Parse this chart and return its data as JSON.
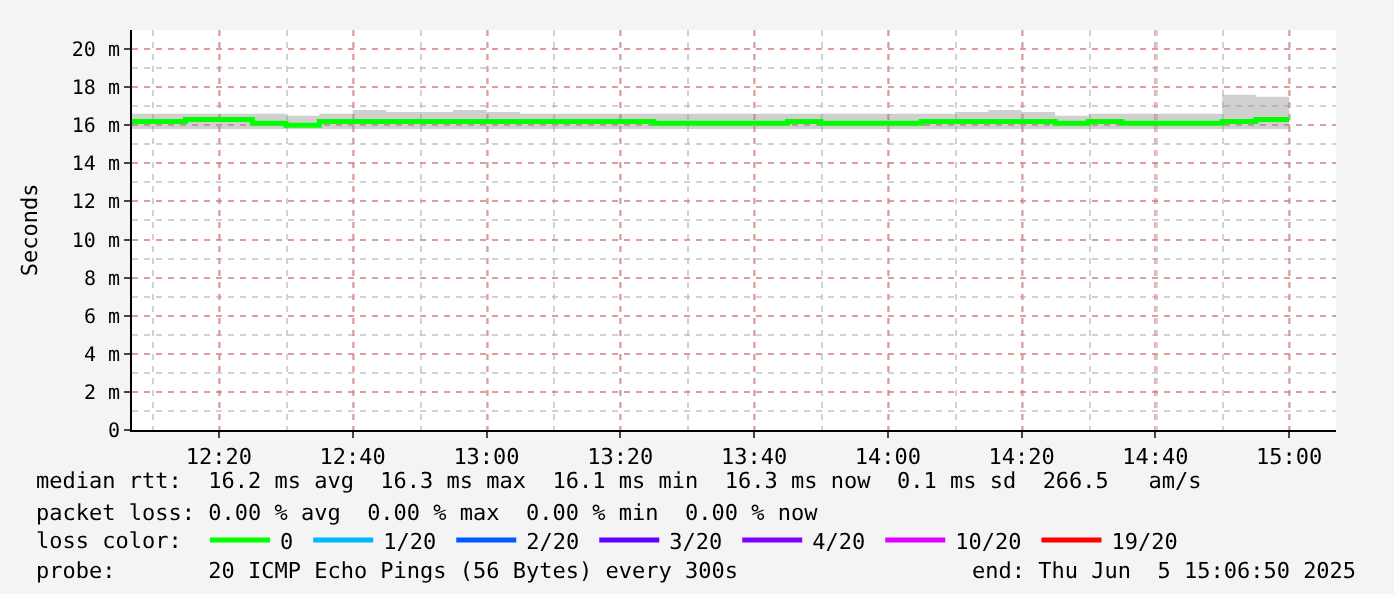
{
  "chart_data": {
    "type": "step",
    "ylabel": "Seconds",
    "x": [
      12.1167,
      12.1667,
      12.25,
      12.3333,
      12.4167,
      12.5,
      12.5833,
      12.6667,
      12.75,
      12.8333,
      12.9167,
      13,
      13.0833,
      13.1667,
      13.25,
      13.3333,
      13.4167,
      13.5,
      13.5833,
      13.6667,
      13.75,
      13.8333,
      13.9167,
      14,
      14.0833,
      14.1667,
      14.25,
      14.3333,
      14.4167,
      14.5,
      14.5833,
      14.6667,
      14.75,
      14.8333,
      14.9167,
      15
    ],
    "series": [
      {
        "name": "0",
        "color": "#00ff00",
        "values": [
          16.2,
          16.2,
          16.3,
          16.3,
          16.1,
          16.0,
          16.2,
          16.2,
          16.2,
          16.2,
          16.2,
          16.2,
          16.2,
          16.2,
          16.2,
          16.2,
          16.1,
          16.1,
          16.1,
          16.1,
          16.2,
          16.1,
          16.1,
          16.1,
          16.2,
          16.2,
          16.2,
          16.2,
          16.1,
          16.2,
          16.1,
          16.1,
          16.1,
          16.2,
          16.3,
          16.3
        ],
        "lower": [
          15.8,
          15.8,
          15.8,
          15.8,
          15.8,
          15.8,
          15.8,
          15.8,
          15.8,
          15.8,
          15.8,
          15.8,
          15.8,
          15.8,
          15.8,
          15.8,
          15.8,
          15.8,
          15.8,
          15.8,
          15.8,
          15.8,
          15.8,
          15.8,
          15.8,
          15.8,
          15.8,
          15.8,
          15.8,
          15.8,
          15.8,
          15.8,
          15.8,
          15.8,
          15.8,
          15.8
        ],
        "upper": [
          16.6,
          16.6,
          16.6,
          16.6,
          16.6,
          16.5,
          16.6,
          16.8,
          16.7,
          16.7,
          16.8,
          16.7,
          16.6,
          16.6,
          16.6,
          16.6,
          16.6,
          16.6,
          16.6,
          16.6,
          16.6,
          16.6,
          16.6,
          16.6,
          16.6,
          16.7,
          16.8,
          16.7,
          16.5,
          16.6,
          16.6,
          16.6,
          16.6,
          17.6,
          17.5,
          17.5
        ]
      },
      {
        "name": "1/20",
        "color": "#00b8ff",
        "values": [
          null,
          null,
          null,
          null,
          null,
          null,
          null,
          null,
          null,
          null,
          null,
          null,
          null,
          null,
          null,
          null,
          null,
          null,
          null,
          null,
          null,
          null,
          null,
          null,
          null,
          null,
          null,
          null,
          null,
          null,
          null,
          null,
          null,
          null,
          null,
          null
        ]
      },
      {
        "name": "2/20",
        "color": "#0059ff",
        "values": [
          null,
          null,
          null,
          null,
          null,
          null,
          null,
          null,
          null,
          null,
          null,
          null,
          null,
          null,
          null,
          null,
          null,
          null,
          null,
          null,
          null,
          null,
          null,
          null,
          null,
          null,
          null,
          null,
          null,
          null,
          null,
          null,
          null,
          null,
          null,
          null
        ]
      },
      {
        "name": "3/20",
        "color": "#5e00ff",
        "values": [
          null,
          null,
          null,
          null,
          null,
          null,
          null,
          null,
          null,
          null,
          null,
          null,
          null,
          null,
          null,
          null,
          null,
          null,
          null,
          null,
          null,
          null,
          null,
          null,
          null,
          null,
          null,
          null,
          null,
          null,
          null,
          null,
          null,
          null,
          null,
          null
        ]
      },
      {
        "name": "4/20",
        "color": "#7e00ff",
        "values": [
          null,
          null,
          null,
          null,
          null,
          null,
          null,
          null,
          null,
          null,
          null,
          null,
          null,
          null,
          null,
          null,
          null,
          null,
          null,
          null,
          null,
          null,
          null,
          null,
          null,
          null,
          null,
          null,
          null,
          null,
          null,
          null,
          null,
          null,
          null,
          null
        ]
      },
      {
        "name": "10/20",
        "color": "#dd00ff",
        "values": [
          null,
          null,
          null,
          null,
          null,
          null,
          null,
          null,
          null,
          null,
          null,
          null,
          null,
          null,
          null,
          null,
          null,
          null,
          null,
          null,
          null,
          null,
          null,
          null,
          null,
          null,
          null,
          null,
          null,
          null,
          null,
          null,
          null,
          null,
          null,
          null
        ]
      },
      {
        "name": "19/20",
        "color": "#ff0000",
        "values": [
          null,
          null,
          null,
          null,
          null,
          null,
          null,
          null,
          null,
          null,
          null,
          null,
          null,
          null,
          null,
          null,
          null,
          null,
          null,
          null,
          null,
          null,
          null,
          null,
          null,
          null,
          null,
          null,
          null,
          null,
          null,
          null,
          null,
          null,
          null,
          null
        ]
      }
    ],
    "xlim": [
      12.1167,
      15.1167
    ],
    "xticks": [
      {
        "value": 12.3333,
        "label": "12:20"
      },
      {
        "value": 12.6667,
        "label": "12:40"
      },
      {
        "value": 13,
        "label": "13:00"
      },
      {
        "value": 13.3333,
        "label": "13:20"
      },
      {
        "value": 13.6667,
        "label": "13:40"
      },
      {
        "value": 14,
        "label": "14:00"
      },
      {
        "value": 14.3333,
        "label": "14:20"
      },
      {
        "value": 14.6667,
        "label": "14:40"
      },
      {
        "value": 15,
        "label": "15:00"
      }
    ],
    "ylim": [
      0,
      21
    ],
    "yticks": [
      {
        "value": 0,
        "label": "0"
      },
      {
        "value": 2,
        "label": "2 m"
      },
      {
        "value": 4,
        "label": "4 m"
      },
      {
        "value": 6,
        "label": "6 m"
      },
      {
        "value": 8,
        "label": "8 m"
      },
      {
        "value": 10,
        "label": "10 m"
      },
      {
        "value": 12,
        "label": "12 m"
      },
      {
        "value": 14,
        "label": "14 m"
      },
      {
        "value": 16,
        "label": "16 m"
      },
      {
        "value": 18,
        "label": "18 m"
      },
      {
        "value": 20,
        "label": "20 m"
      }
    ],
    "grid": true,
    "legend": "bottom",
    "marker": "none",
    "line_style": "solid",
    "annotations": [
      "median rtt:  16.2 ms avg  16.3 ms max  16.1 ms min  16.3 ms now  0.1 ms sd  266.5   am/s",
      "packet loss: 0.00 % avg  0.00 % max  0.00 % min  0.00 % now",
      "loss color:",
      "probe:       20 ICMP Echo Pings (56 Bytes) every 300s",
      "end: Thu Jun  5 15:06:50 2025"
    ]
  }
}
